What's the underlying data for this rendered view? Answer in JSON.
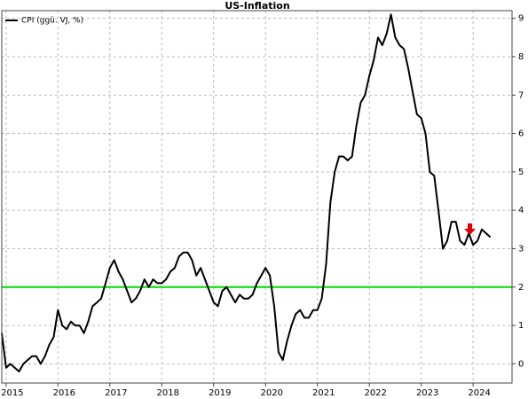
{
  "chart_data": {
    "type": "line",
    "title": "US-Inflation",
    "x": [
      2014.917,
      2015.0,
      2015.083,
      2015.167,
      2015.25,
      2015.333,
      2015.417,
      2015.5,
      2015.583,
      2015.667,
      2015.75,
      2015.833,
      2015.917,
      2016.0,
      2016.083,
      2016.167,
      2016.25,
      2016.333,
      2016.417,
      2016.5,
      2016.583,
      2016.667,
      2016.75,
      2016.833,
      2016.917,
      2017.0,
      2017.083,
      2017.167,
      2017.25,
      2017.333,
      2017.417,
      2017.5,
      2017.583,
      2017.667,
      2017.75,
      2017.833,
      2017.917,
      2018.0,
      2018.083,
      2018.167,
      2018.25,
      2018.333,
      2018.417,
      2018.5,
      2018.583,
      2018.667,
      2018.75,
      2018.833,
      2018.917,
      2019.0,
      2019.083,
      2019.167,
      2019.25,
      2019.333,
      2019.417,
      2019.5,
      2019.583,
      2019.667,
      2019.75,
      2019.833,
      2019.917,
      2020.0,
      2020.083,
      2020.167,
      2020.25,
      2020.333,
      2020.417,
      2020.5,
      2020.583,
      2020.667,
      2020.75,
      2020.833,
      2020.917,
      2021.0,
      2021.083,
      2021.167,
      2021.25,
      2021.333,
      2021.417,
      2021.5,
      2021.583,
      2021.667,
      2021.75,
      2021.833,
      2021.917,
      2022.0,
      2022.083,
      2022.167,
      2022.25,
      2022.333,
      2022.417,
      2022.5,
      2022.583,
      2022.667,
      2022.75,
      2022.833,
      2022.917,
      2023.0,
      2023.083,
      2023.167,
      2023.25,
      2023.333,
      2023.417,
      2023.5,
      2023.583,
      2023.667,
      2023.75,
      2023.833,
      2023.917,
      2024.0,
      2024.083,
      2024.167,
      2024.25,
      2024.333
    ],
    "series": [
      {
        "name": "CPI (ggü. VJ, %)",
        "color": "#000000",
        "values": [
          0.8,
          -0.1,
          0.0,
          -0.1,
          -0.2,
          0.0,
          0.1,
          0.2,
          0.2,
          0.0,
          0.2,
          0.5,
          0.7,
          1.4,
          1.0,
          0.9,
          1.1,
          1.0,
          1.0,
          0.8,
          1.1,
          1.5,
          1.6,
          1.7,
          2.1,
          2.5,
          2.7,
          2.4,
          2.2,
          1.9,
          1.6,
          1.7,
          1.9,
          2.2,
          2.0,
          2.2,
          2.1,
          2.1,
          2.2,
          2.4,
          2.5,
          2.8,
          2.9,
          2.9,
          2.7,
          2.3,
          2.5,
          2.2,
          1.9,
          1.6,
          1.5,
          1.9,
          2.0,
          1.8,
          1.6,
          1.8,
          1.7,
          1.7,
          1.8,
          2.1,
          2.3,
          2.5,
          2.3,
          1.5,
          0.3,
          0.1,
          0.6,
          1.0,
          1.3,
          1.4,
          1.2,
          1.2,
          1.4,
          1.4,
          1.7,
          2.6,
          4.2,
          5.0,
          5.4,
          5.4,
          5.3,
          5.4,
          6.2,
          6.8,
          7.0,
          7.5,
          7.9,
          8.5,
          8.3,
          8.6,
          9.1,
          8.5,
          8.3,
          8.2,
          7.7,
          7.1,
          6.5,
          6.4,
          6.0,
          5.0,
          4.9,
          4.0,
          3.0,
          3.2,
          3.7,
          3.7,
          3.2,
          3.1,
          3.4,
          3.1,
          3.2,
          3.5,
          3.4,
          3.3
        ]
      }
    ],
    "reference_line": {
      "value": 2,
      "color": "#00dd00"
    },
    "xlim": [
      2014.917,
      2024.75
    ],
    "xticks": [
      2015,
      2016,
      2017,
      2018,
      2019,
      2020,
      2021,
      2022,
      2023,
      2024
    ],
    "ylim": [
      -0.5,
      9.2
    ],
    "yticks": [
      0,
      1,
      2,
      3,
      4,
      5,
      6,
      7,
      8,
      9
    ],
    "grid": true,
    "legend": "top-left"
  }
}
